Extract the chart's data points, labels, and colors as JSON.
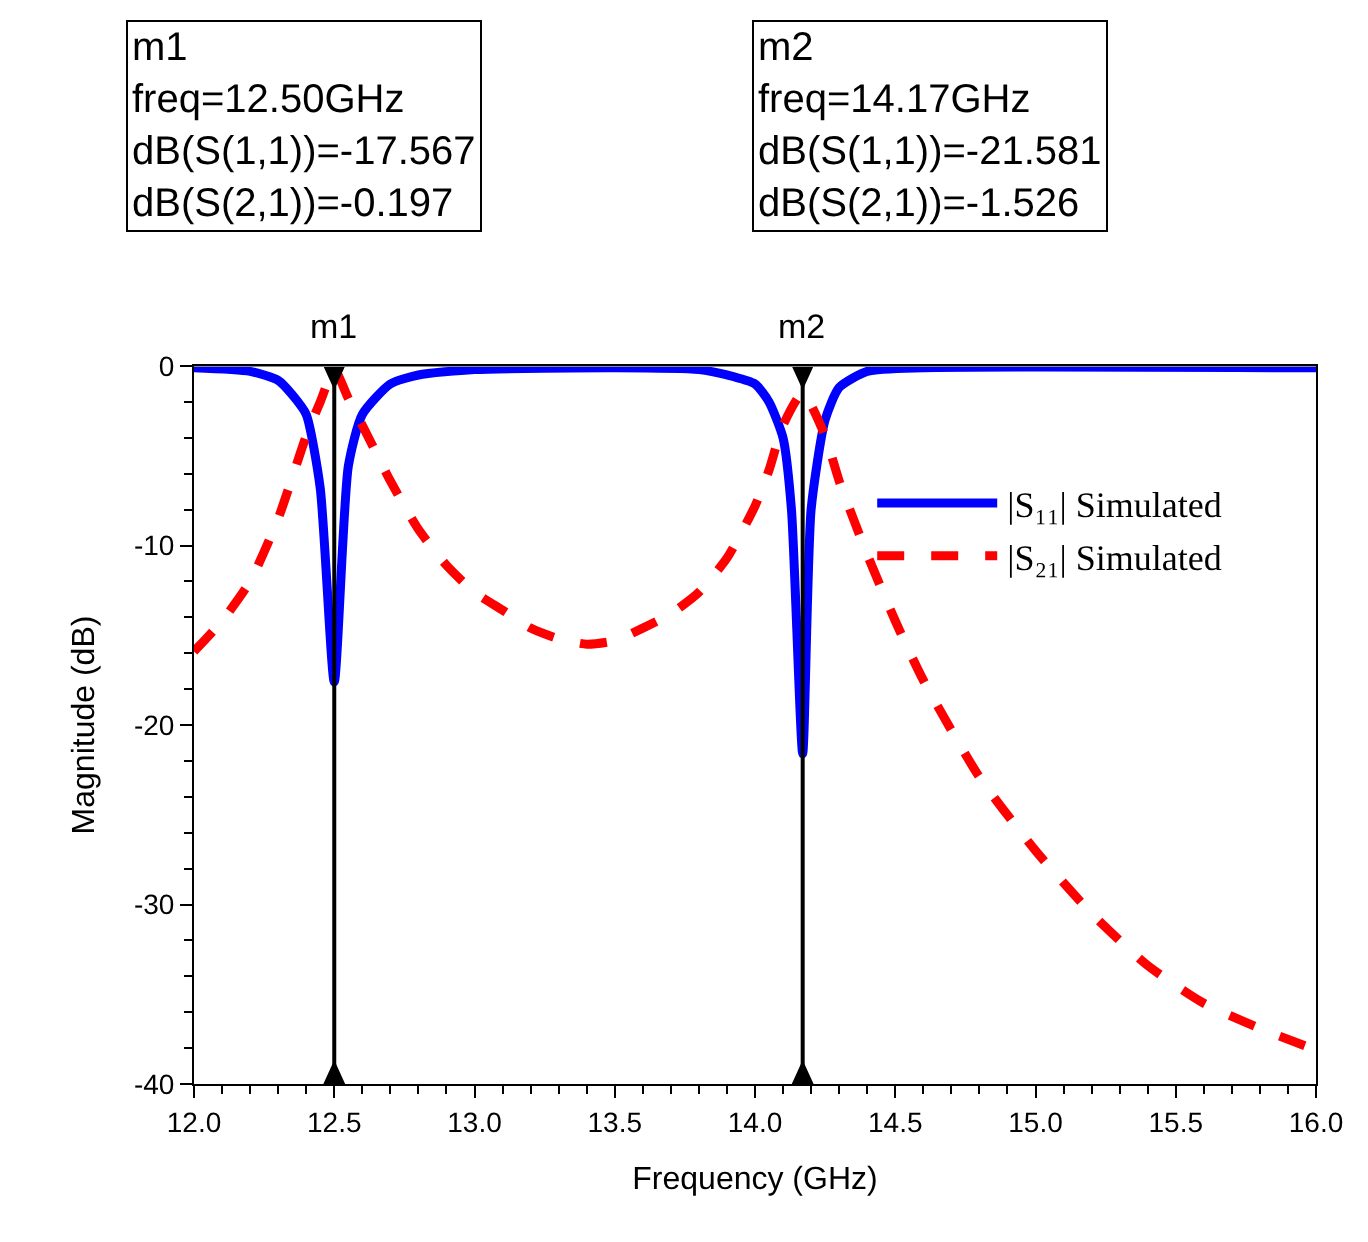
{
  "chart_data": {
    "type": "line",
    "xlabel": "Frequency (GHz)",
    "ylabel": "Magnitude (dB)",
    "xlim": [
      12.0,
      16.0
    ],
    "ylim": [
      -40,
      0
    ],
    "xticks": [
      {
        "value": 12,
        "label": "12.0"
      },
      {
        "value": 12.5,
        "label": "12.5"
      },
      {
        "value": 13,
        "label": "13.0"
      },
      {
        "value": 13.5,
        "label": "13.5"
      },
      {
        "value": 14,
        "label": "14.0"
      },
      {
        "value": 14.5,
        "label": "14.5"
      },
      {
        "value": 15,
        "label": "15.0"
      },
      {
        "value": 15.5,
        "label": "15.5"
      },
      {
        "value": 16,
        "label": "16.0"
      }
    ],
    "yticks": [
      -40,
      -30,
      -20,
      -10,
      0
    ],
    "legend": "top right",
    "marker": "none",
    "series": [
      {
        "name": "|S₁₁| Simulated",
        "color": "#0000ff",
        "line_style": "solid",
        "x": [
          12.0,
          12.2,
          12.3,
          12.35,
          12.4,
          12.45,
          12.5,
          12.55,
          12.6,
          12.7,
          12.8,
          13.0,
          13.5,
          13.8,
          13.9,
          14.0,
          14.05,
          14.1,
          14.13,
          14.17,
          14.2,
          14.25,
          14.3,
          14.4,
          14.6,
          16.0
        ],
        "values": [
          -0.1,
          -0.3,
          -0.8,
          -1.6,
          -2.7,
          -6.8,
          -17.6,
          -5.6,
          -2.7,
          -1.0,
          -0.5,
          -0.2,
          -0.1,
          -0.2,
          -0.5,
          -1.0,
          -2.0,
          -4.0,
          -8.0,
          -21.6,
          -8.0,
          -3.0,
          -1.2,
          -0.3,
          -0.1,
          -0.1
        ]
      },
      {
        "name": "|S₂₁| Simulated",
        "color": "#ff0000",
        "line_style": "dashed",
        "x": [
          12.0,
          12.1,
          12.2,
          12.3,
          12.4,
          12.45,
          12.5,
          12.55,
          12.6,
          12.7,
          12.8,
          12.9,
          13.0,
          13.1,
          13.2,
          13.3,
          13.4,
          13.5,
          13.6,
          13.7,
          13.8,
          13.9,
          14.0,
          14.05,
          14.1,
          14.17,
          14.25,
          14.3,
          14.4,
          14.5,
          14.6,
          14.8,
          15.0,
          15.2,
          15.4,
          15.6,
          15.8,
          16.0
        ],
        "values": [
          -15.9,
          -14.2,
          -12.0,
          -8.5,
          -3.9,
          -2.0,
          -0.2,
          -1.8,
          -3.3,
          -6.4,
          -9.1,
          -11.1,
          -12.6,
          -13.6,
          -14.6,
          -15.2,
          -15.5,
          -15.3,
          -14.6,
          -13.8,
          -12.6,
          -10.7,
          -7.8,
          -5.8,
          -3.3,
          -1.5,
          -3.9,
          -6.4,
          -10.5,
          -14.2,
          -17.5,
          -22.9,
          -27.0,
          -30.5,
          -33.4,
          -35.5,
          -36.9,
          -38.1
        ]
      }
    ],
    "ref_lines": [
      {
        "axis": "x",
        "value": 12.5,
        "label": "m1",
        "color": "#000000"
      },
      {
        "axis": "x",
        "value": 14.17,
        "label": "m2",
        "color": "#000000"
      }
    ],
    "annotations": [
      "m1\nfreq=12.50GHz\ndB(S(1,1))=-17.567\ndB(S(2,1))=-0.197",
      "m2\nfreq=14.17GHz\ndB(S(1,1))=-21.581\ndB(S(2,1))=-1.526"
    ]
  }
}
